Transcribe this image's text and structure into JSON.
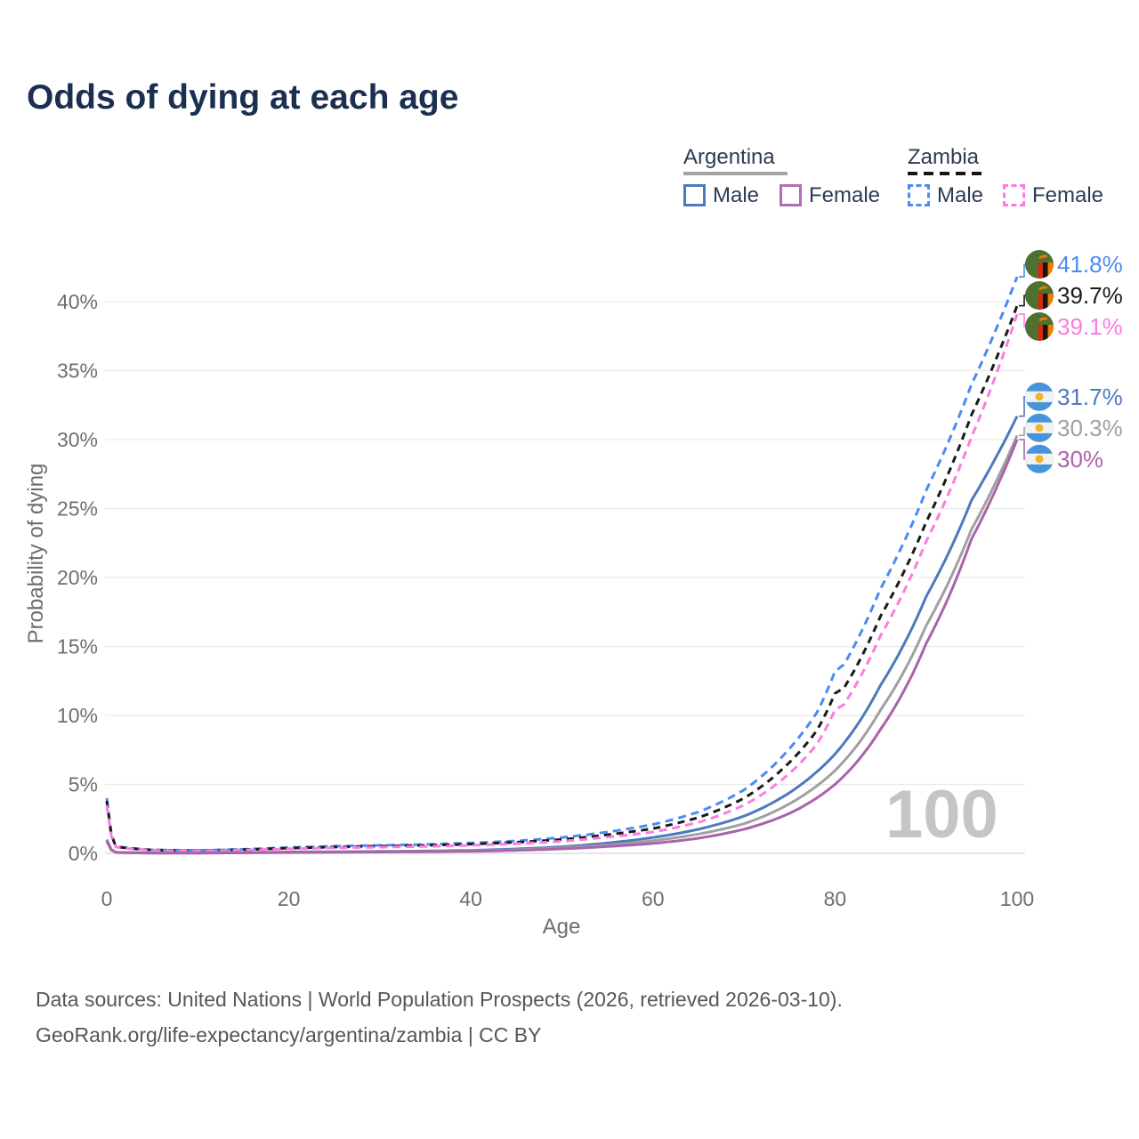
{
  "page": {
    "title": "Odds of dying at each age"
  },
  "legend": {
    "groups": [
      {
        "id": "argentina",
        "title": "Argentina",
        "line_style": "solid",
        "line_color": "#a3a3a3",
        "items": [
          {
            "label": "Male",
            "color": "#4d79bd",
            "dashed": false
          },
          {
            "label": "Female",
            "color": "#b06fb0",
            "dashed": false
          }
        ]
      },
      {
        "id": "zambia",
        "title": "Zambia",
        "line_style": "dashed",
        "line_color": "#151515",
        "items": [
          {
            "label": "Male",
            "color": "#4a8cf0",
            "dashed": true
          },
          {
            "label": "Female",
            "color": "#fb7ce0",
            "dashed": true
          }
        ]
      }
    ]
  },
  "chart_data": {
    "type": "line",
    "title": "Odds of dying at each age",
    "xlabel": "Age",
    "ylabel": "Probability of dying",
    "xlim": [
      0,
      100
    ],
    "ylim_percent": [
      0,
      42
    ],
    "grid": "horizontal-only",
    "watermark": "100",
    "x_ticks": [
      {
        "label": "0",
        "value": 0
      },
      {
        "label": "20",
        "value": 20
      },
      {
        "label": "40",
        "value": 40
      },
      {
        "label": "60",
        "value": 60
      },
      {
        "label": "80",
        "value": 80
      },
      {
        "label": "100",
        "value": 100
      }
    ],
    "y_ticks": [
      {
        "label": "0%",
        "value": 0
      },
      {
        "label": "5%",
        "value": 5
      },
      {
        "label": "10%",
        "value": 10
      },
      {
        "label": "15%",
        "value": 15
      },
      {
        "label": "20%",
        "value": 20
      },
      {
        "label": "25%",
        "value": 25
      },
      {
        "label": "30%",
        "value": 30
      },
      {
        "label": "35%",
        "value": 35
      },
      {
        "label": "40%",
        "value": 40
      }
    ],
    "series": [
      {
        "id": "zambia-male",
        "name": "Zambia Male",
        "country": "zambia",
        "sex": "male",
        "color": "#4a8cf0",
        "dashed": true,
        "end_label": "41.8%",
        "points": [
          [
            0,
            4.0
          ],
          [
            1,
            0.5
          ],
          [
            5,
            0.25
          ],
          [
            10,
            0.22
          ],
          [
            15,
            0.3
          ],
          [
            20,
            0.42
          ],
          [
            25,
            0.52
          ],
          [
            30,
            0.58
          ],
          [
            35,
            0.65
          ],
          [
            40,
            0.75
          ],
          [
            45,
            0.9
          ],
          [
            50,
            1.15
          ],
          [
            55,
            1.55
          ],
          [
            60,
            2.1
          ],
          [
            65,
            3.0
          ],
          [
            70,
            4.6
          ],
          [
            75,
            7.6
          ],
          [
            78,
            10.2
          ],
          [
            80,
            13.2
          ],
          [
            81,
            13.7
          ],
          [
            85,
            19.2
          ],
          [
            90,
            26.3
          ],
          [
            95,
            34.0
          ],
          [
            100,
            41.8
          ]
        ]
      },
      {
        "id": "zambia-total",
        "name": "Zambia",
        "country": "zambia",
        "sex": "both",
        "color": "#1a1a1a",
        "dashed": true,
        "end_label": "39.7%",
        "points": [
          [
            0,
            3.8
          ],
          [
            1,
            0.48
          ],
          [
            5,
            0.24
          ],
          [
            10,
            0.2
          ],
          [
            15,
            0.27
          ],
          [
            20,
            0.38
          ],
          [
            25,
            0.46
          ],
          [
            30,
            0.52
          ],
          [
            35,
            0.58
          ],
          [
            40,
            0.67
          ],
          [
            45,
            0.8
          ],
          [
            50,
            1.0
          ],
          [
            55,
            1.35
          ],
          [
            60,
            1.8
          ],
          [
            65,
            2.6
          ],
          [
            70,
            4.0
          ],
          [
            75,
            6.6
          ],
          [
            78,
            8.9
          ],
          [
            80,
            11.6
          ],
          [
            81,
            12.0
          ],
          [
            85,
            17.2
          ],
          [
            90,
            24.0
          ],
          [
            95,
            31.8
          ],
          [
            100,
            39.7
          ]
        ]
      },
      {
        "id": "zambia-female",
        "name": "Zambia Female",
        "country": "zambia",
        "sex": "female",
        "color": "#fb7ce0",
        "dashed": true,
        "end_label": "39.1%",
        "points": [
          [
            0,
            3.5
          ],
          [
            1,
            0.45
          ],
          [
            5,
            0.22
          ],
          [
            10,
            0.18
          ],
          [
            15,
            0.24
          ],
          [
            20,
            0.33
          ],
          [
            25,
            0.4
          ],
          [
            30,
            0.45
          ],
          [
            35,
            0.5
          ],
          [
            40,
            0.58
          ],
          [
            45,
            0.7
          ],
          [
            50,
            0.88
          ],
          [
            55,
            1.18
          ],
          [
            60,
            1.55
          ],
          [
            65,
            2.25
          ],
          [
            70,
            3.5
          ],
          [
            75,
            5.8
          ],
          [
            78,
            7.9
          ],
          [
            80,
            10.4
          ],
          [
            81,
            10.8
          ],
          [
            85,
            15.8
          ],
          [
            90,
            22.6
          ],
          [
            95,
            30.2
          ],
          [
            100,
            39.1
          ]
        ]
      },
      {
        "id": "argentina-male",
        "name": "Argentina Male",
        "country": "argentina",
        "sex": "male",
        "color": "#4d79bd",
        "dashed": false,
        "end_label": "31.7%",
        "points": [
          [
            0,
            1.0
          ],
          [
            1,
            0.08
          ],
          [
            5,
            0.03
          ],
          [
            10,
            0.03
          ],
          [
            15,
            0.06
          ],
          [
            20,
            0.1
          ],
          [
            25,
            0.12
          ],
          [
            30,
            0.14
          ],
          [
            35,
            0.17
          ],
          [
            40,
            0.22
          ],
          [
            45,
            0.32
          ],
          [
            50,
            0.48
          ],
          [
            55,
            0.75
          ],
          [
            60,
            1.15
          ],
          [
            65,
            1.75
          ],
          [
            70,
            2.7
          ],
          [
            75,
            4.4
          ],
          [
            80,
            7.2
          ],
          [
            85,
            12.2
          ],
          [
            90,
            18.6
          ],
          [
            95,
            25.6
          ],
          [
            100,
            31.7
          ]
        ]
      },
      {
        "id": "argentina-total",
        "name": "Argentina",
        "country": "argentina",
        "sex": "both",
        "color": "#a0a0a0",
        "dashed": false,
        "end_label": "30.3%",
        "points": [
          [
            0,
            0.92
          ],
          [
            1,
            0.075
          ],
          [
            5,
            0.025
          ],
          [
            10,
            0.025
          ],
          [
            15,
            0.05
          ],
          [
            20,
            0.08
          ],
          [
            25,
            0.1
          ],
          [
            30,
            0.12
          ],
          [
            35,
            0.14
          ],
          [
            40,
            0.18
          ],
          [
            45,
            0.26
          ],
          [
            50,
            0.4
          ],
          [
            55,
            0.6
          ],
          [
            60,
            0.92
          ],
          [
            65,
            1.4
          ],
          [
            70,
            2.15
          ],
          [
            75,
            3.6
          ],
          [
            80,
            6.0
          ],
          [
            85,
            10.4
          ],
          [
            90,
            16.5
          ],
          [
            95,
            23.5
          ],
          [
            100,
            30.3
          ]
        ]
      },
      {
        "id": "argentina-female",
        "name": "Argentina Female",
        "country": "argentina",
        "sex": "female",
        "color": "#aa63aa",
        "dashed": false,
        "end_label": "30%",
        "points": [
          [
            0,
            0.85
          ],
          [
            1,
            0.07
          ],
          [
            5,
            0.02
          ],
          [
            10,
            0.02
          ],
          [
            15,
            0.04
          ],
          [
            20,
            0.06
          ],
          [
            25,
            0.08
          ],
          [
            30,
            0.1
          ],
          [
            35,
            0.12
          ],
          [
            40,
            0.15
          ],
          [
            45,
            0.22
          ],
          [
            50,
            0.33
          ],
          [
            55,
            0.5
          ],
          [
            60,
            0.72
          ],
          [
            65,
            1.1
          ],
          [
            70,
            1.75
          ],
          [
            75,
            2.9
          ],
          [
            80,
            5.0
          ],
          [
            85,
            9.0
          ],
          [
            90,
            15.2
          ],
          [
            95,
            22.8
          ],
          [
            100,
            30.0
          ]
        ]
      }
    ],
    "colors": {
      "grid": "#e9e9e9",
      "zero_line": "#dcdcdc",
      "tick_text": "#6e6e6e",
      "watermark": "#c5c5c5",
      "title": "#1b3050"
    },
    "flags": {
      "zambia": {
        "green": "#4e7031",
        "red": "#d42a10",
        "black": "#151515",
        "orange": "#ef7d00"
      },
      "argentina": {
        "blue": "#4695da",
        "white": "#f2f2f2",
        "sun": "#f2b430"
      }
    }
  },
  "footer": {
    "line1": "Data sources: United Nations | World Population Prospects (2026, retrieved 2026-03-10).",
    "line2": "GeoRank.org/life-expectancy/argentina/zambia | CC BY"
  }
}
